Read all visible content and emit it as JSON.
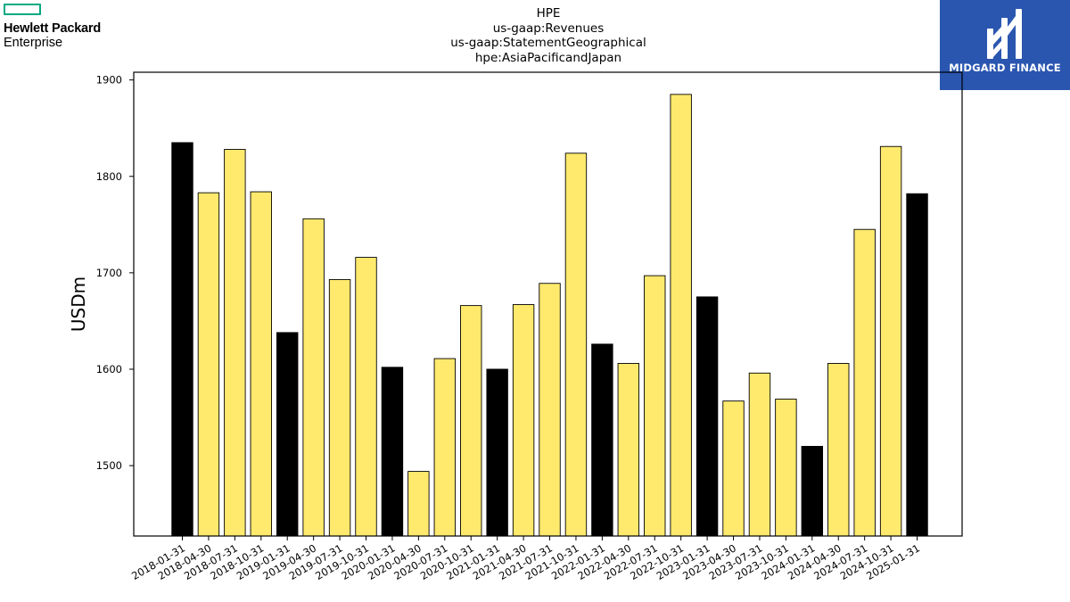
{
  "brand": {
    "line1": "Hewlett Packard",
    "line2": "Enterprise"
  },
  "watermark": {
    "name": "MIDGARD FINANCE"
  },
  "colors": {
    "primary_bar": "#000000",
    "secondary_bar": "#ffea6e",
    "hpe_green": "#01a982",
    "midgard_blue": "#2a56b0"
  },
  "chart_data": {
    "type": "bar",
    "title": [
      "HPE",
      "us-gaap:Revenues",
      "us-gaap:StatementGeographical",
      "hpe:AsiaPacificandJapan"
    ],
    "xlabel": "",
    "ylabel": "USDm",
    "ylim": [
      1427,
      1908
    ],
    "yticks": [
      1500,
      1600,
      1700,
      1800,
      1900
    ],
    "grid": false,
    "categories": [
      "2018-01-31",
      "2018-04-30",
      "2018-07-31",
      "2018-10-31",
      "2019-01-31",
      "2019-04-30",
      "2019-07-31",
      "2019-10-31",
      "2020-01-31",
      "2020-04-30",
      "2020-07-31",
      "2020-10-31",
      "2021-01-31",
      "2021-04-30",
      "2021-07-31",
      "2021-10-31",
      "2022-01-31",
      "2022-04-30",
      "2022-07-31",
      "2022-10-31",
      "2023-01-31",
      "2023-04-30",
      "2023-07-31",
      "2023-10-31",
      "2024-01-31",
      "2024-04-30",
      "2024-07-31",
      "2024-10-31",
      "2025-01-31"
    ],
    "values": [
      1835,
      1783,
      1828,
      1784,
      1638,
      1756,
      1693,
      1716,
      1602,
      1494,
      1611,
      1666,
      1600,
      1667,
      1689,
      1824,
      1626,
      1606,
      1697,
      1885,
      1675,
      1567,
      1596,
      1569,
      1520,
      1606,
      1745,
      1831,
      1782
    ],
    "highlight": [
      true,
      false,
      false,
      false,
      true,
      false,
      false,
      false,
      true,
      false,
      false,
      false,
      true,
      false,
      false,
      false,
      true,
      false,
      false,
      false,
      true,
      false,
      false,
      false,
      true,
      false,
      false,
      false,
      true
    ]
  }
}
